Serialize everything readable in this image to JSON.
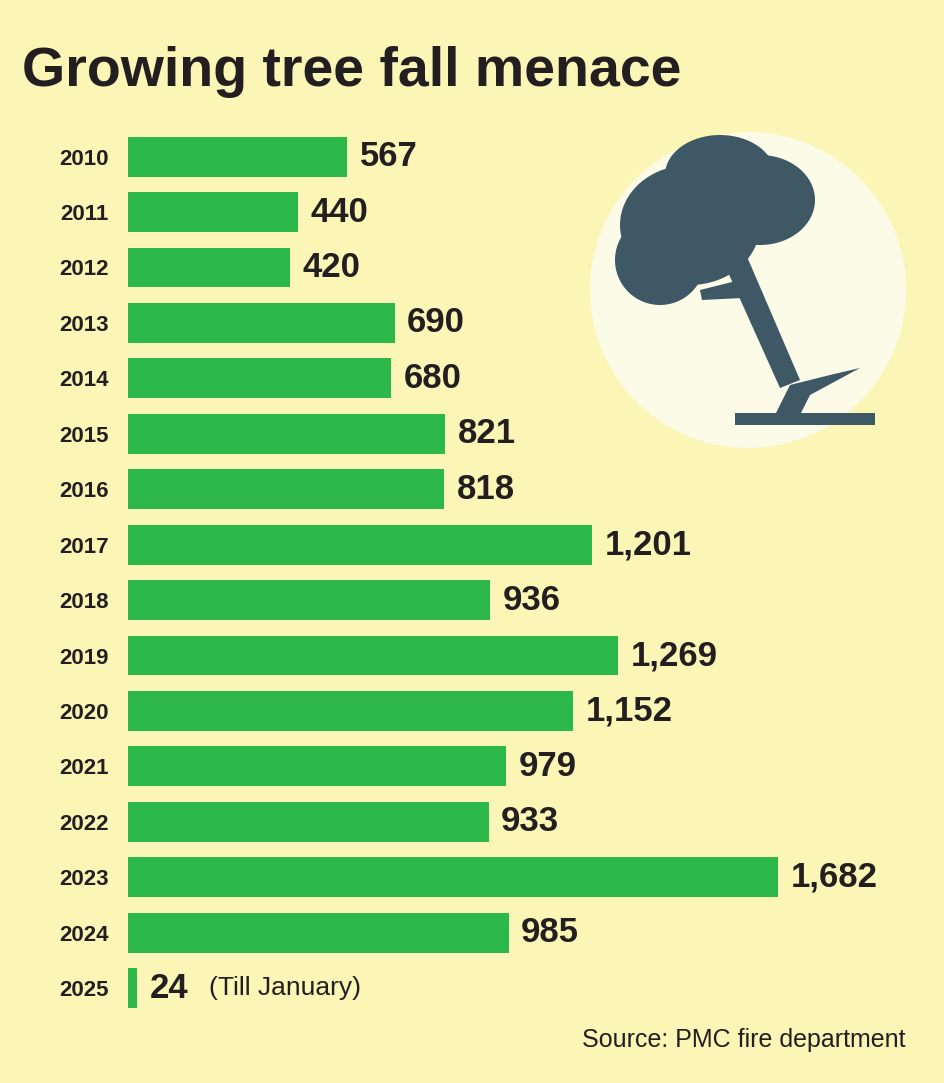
{
  "chart_data": {
    "type": "bar",
    "title": "Growing tree fall menace",
    "orientation": "horizontal",
    "categories": [
      "2010",
      "2011",
      "2012",
      "2013",
      "2014",
      "2015",
      "2016",
      "2017",
      "2018",
      "2019",
      "2020",
      "2021",
      "2022",
      "2023",
      "2024",
      "2025"
    ],
    "values": [
      567,
      440,
      420,
      690,
      680,
      821,
      818,
      1201,
      936,
      1269,
      1152,
      979,
      933,
      1682,
      985,
      24
    ],
    "value_labels": [
      "567",
      "440",
      "420",
      "690",
      "680",
      "821",
      "818",
      "1,201",
      "936",
      "1,269",
      "1,152",
      "979",
      "933",
      "1,682",
      "985",
      "24"
    ],
    "data_labels": true,
    "annotations": [
      {
        "category": "2025",
        "text": "(Till January)"
      }
    ],
    "source": "Source: PMC fire department",
    "color": "#2db84a",
    "xlim": [
      0,
      2000
    ],
    "tick_labels": "y",
    "grid": false
  }
}
